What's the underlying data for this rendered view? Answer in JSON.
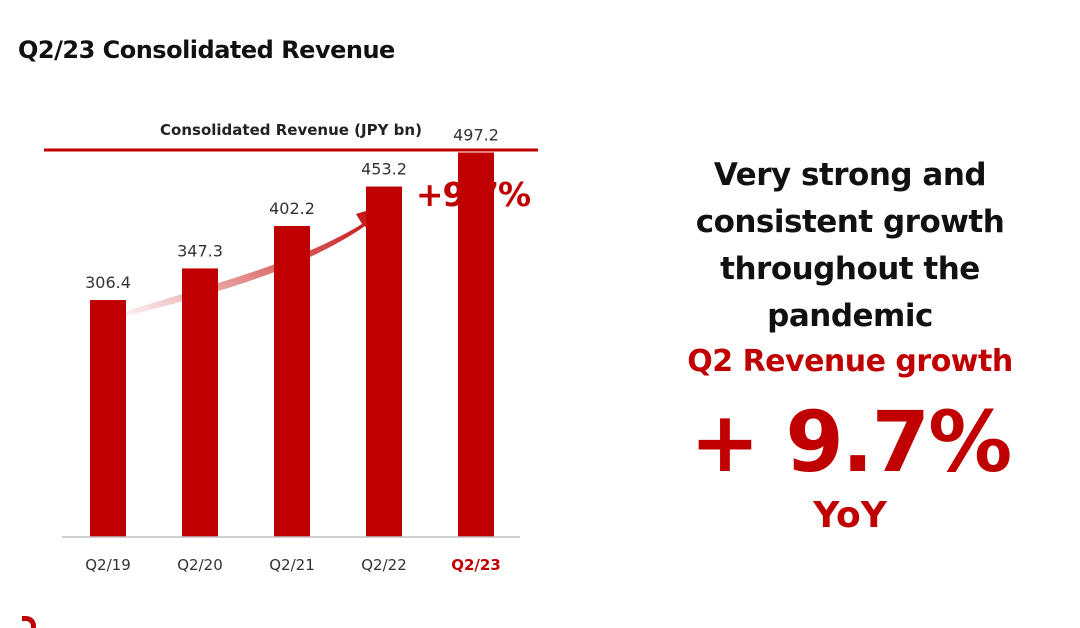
{
  "page": {
    "title": "Q2/23 Consolidated Revenue"
  },
  "chart_data": {
    "type": "bar",
    "title": "Consolidated Revenue (JPY bn)",
    "categories": [
      "Q2/19",
      "Q2/20",
      "Q2/21",
      "Q2/22",
      "Q2/23"
    ],
    "values": [
      306.4,
      347.3,
      402.2,
      453.2,
      497.2
    ],
    "value_labels": [
      "306.4",
      "347.3",
      "402.2",
      "453.2",
      "497.2"
    ],
    "highlight_category": "Q2/23",
    "ylim": [
      0,
      600
    ],
    "xlabel": "",
    "ylabel": "",
    "grid": false,
    "annotation": {
      "value": "+9.7%",
      "label": "YoY"
    },
    "colors": {
      "bar": "#c00000",
      "tick": "#333333",
      "highlight_tick": "#c00000",
      "value_label": "#333333"
    }
  },
  "summary": {
    "headline_lines": [
      "Very strong and",
      "consistent growth",
      "throughout the",
      "pandemic"
    ],
    "growth_label": "Q2 Revenue growth",
    "growth_value": "+ 9.7%",
    "growth_yoy": "YoY"
  },
  "colors": {
    "accent": "#c00000",
    "text": "#111111"
  }
}
